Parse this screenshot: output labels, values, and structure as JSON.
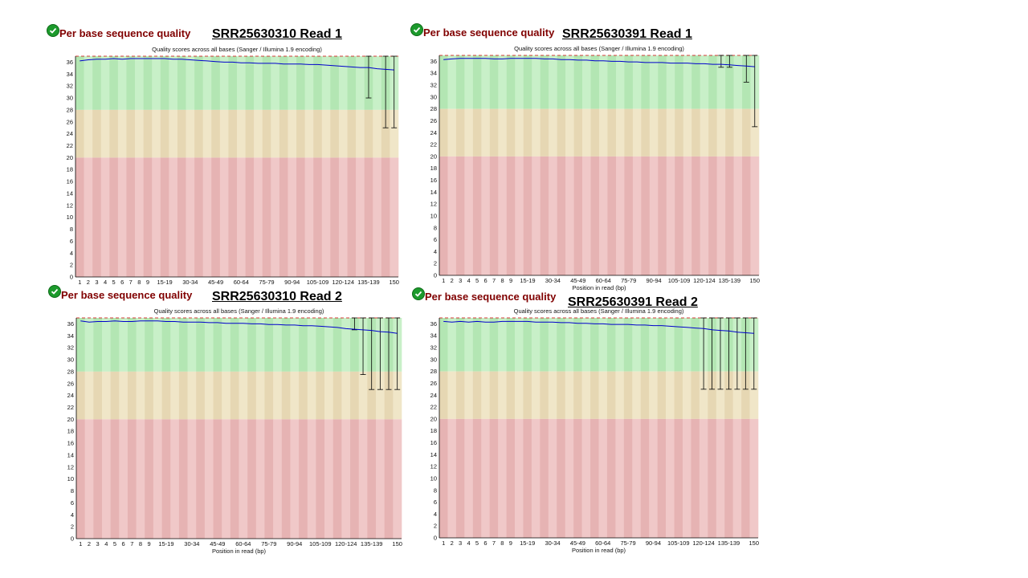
{
  "colors": {
    "good": "#b3e6b3",
    "good_alt": "#c8f0c8",
    "warn": "#e6d7b3",
    "warn_alt": "#f0e6c8",
    "bad": "#e6b3b3",
    "bad_alt": "#f0c8c8",
    "mean_line": "#0000cc",
    "whisker": "#000000",
    "frame": "#000000",
    "top_line": "#cc0000"
  },
  "status_icon": "check-circle-icon",
  "chart_data": [
    {
      "type": "line",
      "module": "Per base sequence quality",
      "sample_title": "SRR25630310 Read 1",
      "title": "Quality scores across all bases (Sanger / Illumina 1.9 encoding)",
      "xlabel": "",
      "ylim": [
        0,
        37
      ],
      "yticks": [
        0,
        2,
        4,
        6,
        8,
        10,
        12,
        14,
        16,
        18,
        20,
        22,
        24,
        26,
        28,
        30,
        32,
        34,
        36
      ],
      "categories": [
        "1",
        "2",
        "3",
        "4",
        "5",
        "6",
        "7",
        "8",
        "9",
        "10-14",
        "15-19",
        "20-24",
        "25-29",
        "30-34",
        "35-39",
        "40-44",
        "45-49",
        "50-54",
        "55-59",
        "60-64",
        "65-69",
        "70-74",
        "75-79",
        "80-84",
        "85-89",
        "90-94",
        "95-99",
        "100-104",
        "105-109",
        "110-114",
        "115-119",
        "120-124",
        "125-129",
        "130-134",
        "135-139",
        "140-144",
        "145-149",
        "150"
      ],
      "xtick_labels": [
        "1",
        "2",
        "3",
        "4",
        "5",
        "6",
        "7",
        "8",
        "9",
        "15-19",
        "30-34",
        "45-49",
        "60-64",
        "75-79",
        "90-94",
        "105-109",
        "120-124",
        "135-139",
        "150"
      ],
      "series": [
        {
          "values": [
            36.2,
            36.4,
            36.5,
            36.5,
            36.6,
            36.5,
            36.6,
            36.6,
            36.6,
            36.6,
            36.6,
            36.5,
            36.5,
            36.4,
            36.3,
            36.2,
            36.1,
            36.0,
            36.0,
            35.9,
            35.9,
            35.8,
            35.8,
            35.8,
            35.7,
            35.7,
            35.7,
            35.6,
            35.6,
            35.5,
            35.4,
            35.3,
            35.2,
            35.1,
            35.1,
            34.9,
            34.8,
            34.7
          ]
        }
      ],
      "whiskers": [
        {
          "category": "135-139",
          "low": 30,
          "high": 37
        },
        {
          "category": "145-149",
          "low": 25,
          "high": 37
        },
        {
          "category": "150",
          "low": 25,
          "high": 37
        }
      ],
      "zones": {
        "good": [
          28,
          37
        ],
        "warn": [
          20,
          28
        ],
        "bad": [
          0,
          20
        ]
      }
    },
    {
      "type": "line",
      "module": "Per base sequence quality",
      "sample_title": "SRR25630391 Read 1",
      "title": "Quality scores across all bases (Sanger / Illumina 1.9 encoding)",
      "xlabel": "Position in read (bp)",
      "ylim": [
        0,
        37
      ],
      "yticks": [
        0,
        2,
        4,
        6,
        8,
        10,
        12,
        14,
        16,
        18,
        20,
        22,
        24,
        26,
        28,
        30,
        32,
        34,
        36
      ],
      "categories": [
        "1",
        "2",
        "3",
        "4",
        "5",
        "6",
        "7",
        "8",
        "9",
        "10-14",
        "15-19",
        "20-24",
        "25-29",
        "30-34",
        "35-39",
        "40-44",
        "45-49",
        "50-54",
        "55-59",
        "60-64",
        "65-69",
        "70-74",
        "75-79",
        "80-84",
        "85-89",
        "90-94",
        "95-99",
        "100-104",
        "105-109",
        "110-114",
        "115-119",
        "120-124",
        "125-129",
        "130-134",
        "135-139",
        "140-144",
        "145-149",
        "150"
      ],
      "xtick_labels": [
        "1",
        "2",
        "3",
        "4",
        "5",
        "6",
        "7",
        "8",
        "9",
        "15-19",
        "30-34",
        "45-49",
        "60-64",
        "75-79",
        "90-94",
        "105-109",
        "120-124",
        "135-139",
        "150"
      ],
      "series": [
        {
          "values": [
            36.3,
            36.4,
            36.5,
            36.5,
            36.5,
            36.5,
            36.4,
            36.4,
            36.5,
            36.5,
            36.5,
            36.5,
            36.4,
            36.4,
            36.3,
            36.3,
            36.2,
            36.2,
            36.1,
            36.1,
            36.0,
            36.0,
            35.9,
            35.9,
            35.8,
            35.8,
            35.8,
            35.7,
            35.7,
            35.7,
            35.6,
            35.6,
            35.5,
            35.5,
            35.4,
            35.3,
            35.2,
            35.1
          ]
        }
      ],
      "whiskers": [
        {
          "category": "130-134",
          "low": 35,
          "high": 37
        },
        {
          "category": "135-139",
          "low": 35,
          "high": 37
        },
        {
          "category": "145-149",
          "low": 32.5,
          "high": 37
        },
        {
          "category": "150",
          "low": 25,
          "high": 37
        }
      ],
      "zones": {
        "good": [
          28,
          37
        ],
        "warn": [
          20,
          28
        ],
        "bad": [
          0,
          20
        ]
      }
    },
    {
      "type": "line",
      "module": "Per base sequence quality",
      "sample_title": "SRR25630310 Read 2",
      "title": "Quality scores across all bases (Sanger / Illumina 1.9 encoding)",
      "xlabel": "Position in read (bp)",
      "ylim": [
        0,
        37
      ],
      "yticks": [
        0,
        2,
        4,
        6,
        8,
        10,
        12,
        14,
        16,
        18,
        20,
        22,
        24,
        26,
        28,
        30,
        32,
        34,
        36
      ],
      "categories": [
        "1",
        "2",
        "3",
        "4",
        "5",
        "6",
        "7",
        "8",
        "9",
        "10-14",
        "15-19",
        "20-24",
        "25-29",
        "30-34",
        "35-39",
        "40-44",
        "45-49",
        "50-54",
        "55-59",
        "60-64",
        "65-69",
        "70-74",
        "75-79",
        "80-84",
        "85-89",
        "90-94",
        "95-99",
        "100-104",
        "105-109",
        "110-114",
        "115-119",
        "120-124",
        "125-129",
        "130-134",
        "135-139",
        "140-144",
        "145-149",
        "150"
      ],
      "xtick_labels": [
        "1",
        "2",
        "3",
        "4",
        "5",
        "6",
        "7",
        "8",
        "9",
        "15-19",
        "30-34",
        "45-49",
        "60-64",
        "75-79",
        "90-94",
        "105-109",
        "120-124",
        "135-139",
        "150"
      ],
      "series": [
        {
          "values": [
            36.5,
            36.3,
            36.4,
            36.4,
            36.5,
            36.4,
            36.4,
            36.5,
            36.5,
            36.5,
            36.4,
            36.4,
            36.3,
            36.3,
            36.3,
            36.2,
            36.2,
            36.1,
            36.1,
            36.1,
            36.0,
            36.0,
            35.9,
            35.9,
            35.8,
            35.8,
            35.7,
            35.7,
            35.6,
            35.5,
            35.4,
            35.2,
            35.1,
            35.0,
            34.9,
            34.7,
            34.6,
            34.4
          ]
        }
      ],
      "whiskers": [
        {
          "category": "125-129",
          "low": 35,
          "high": 37
        },
        {
          "category": "130-134",
          "low": 27.5,
          "high": 37
        },
        {
          "category": "135-139",
          "low": 25,
          "high": 37
        },
        {
          "category": "140-144",
          "low": 25,
          "high": 37
        },
        {
          "category": "145-149",
          "low": 25,
          "high": 37
        },
        {
          "category": "150",
          "low": 25,
          "high": 37
        }
      ],
      "zones": {
        "good": [
          28,
          37
        ],
        "warn": [
          20,
          28
        ],
        "bad": [
          0,
          20
        ]
      }
    },
    {
      "type": "line",
      "module": "Per base sequence quality",
      "sample_title": "SRR25630391 Read 2",
      "title": "Quality scores across all bases (Sanger / Illumina 1.9 encoding)",
      "xlabel": "Position in read (bp)",
      "ylim": [
        0,
        37
      ],
      "yticks": [
        0,
        2,
        4,
        6,
        8,
        10,
        12,
        14,
        16,
        18,
        20,
        22,
        24,
        26,
        28,
        30,
        32,
        34,
        36
      ],
      "categories": [
        "1",
        "2",
        "3",
        "4",
        "5",
        "6",
        "7",
        "8",
        "9",
        "10-14",
        "15-19",
        "20-24",
        "25-29",
        "30-34",
        "35-39",
        "40-44",
        "45-49",
        "50-54",
        "55-59",
        "60-64",
        "65-69",
        "70-74",
        "75-79",
        "80-84",
        "85-89",
        "90-94",
        "95-99",
        "100-104",
        "105-109",
        "110-114",
        "115-119",
        "120-124",
        "125-129",
        "130-134",
        "135-139",
        "140-144",
        "145-149",
        "150"
      ],
      "xtick_labels": [
        "1",
        "2",
        "3",
        "4",
        "5",
        "6",
        "7",
        "8",
        "9",
        "15-19",
        "30-34",
        "45-49",
        "60-64",
        "75-79",
        "90-94",
        "105-109",
        "120-124",
        "135-139",
        "150"
      ],
      "series": [
        {
          "values": [
            36.4,
            36.3,
            36.4,
            36.3,
            36.4,
            36.3,
            36.3,
            36.4,
            36.4,
            36.4,
            36.4,
            36.3,
            36.3,
            36.3,
            36.2,
            36.2,
            36.1,
            36.1,
            36.0,
            36.0,
            35.9,
            35.9,
            35.9,
            35.8,
            35.8,
            35.7,
            35.7,
            35.6,
            35.5,
            35.4,
            35.3,
            35.2,
            35.0,
            34.9,
            34.8,
            34.6,
            34.5,
            34.4
          ]
        }
      ],
      "whiskers": [
        {
          "category": "120-124",
          "low": 25,
          "high": 37
        },
        {
          "category": "125-129",
          "low": 25,
          "high": 37
        },
        {
          "category": "130-134",
          "low": 25,
          "high": 37
        },
        {
          "category": "135-139",
          "low": 25,
          "high": 37
        },
        {
          "category": "140-144",
          "low": 25,
          "high": 37
        },
        {
          "category": "145-149",
          "low": 25,
          "high": 37
        },
        {
          "category": "150",
          "low": 25,
          "high": 37
        }
      ],
      "zones": {
        "good": [
          28,
          37
        ],
        "warn": [
          20,
          28
        ],
        "bad": [
          0,
          20
        ]
      }
    }
  ]
}
